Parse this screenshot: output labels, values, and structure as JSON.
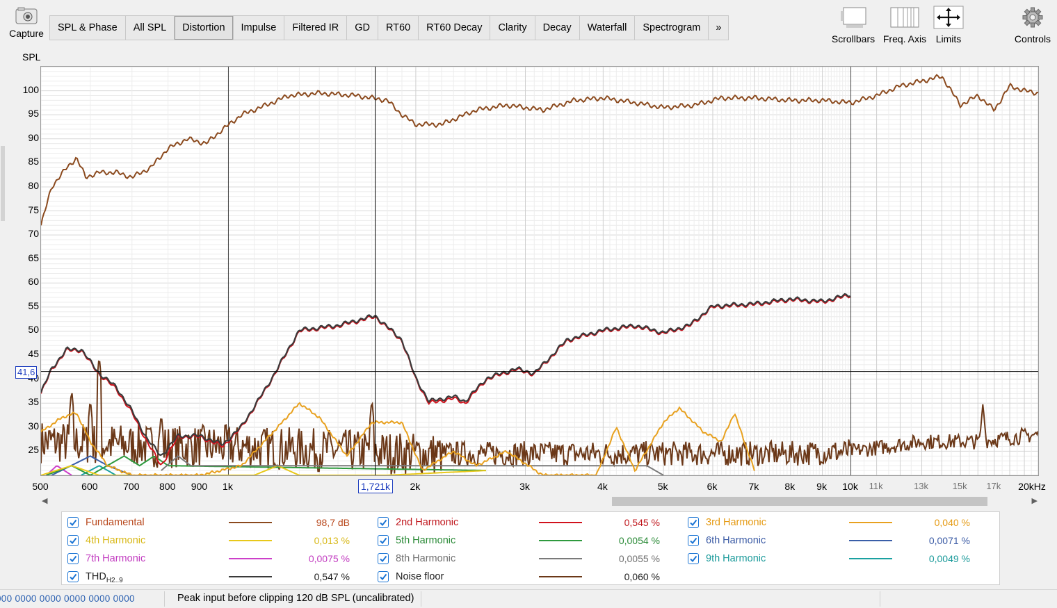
{
  "toolbar": {
    "capture_label": "Capture",
    "tabs": [
      {
        "label": "SPL & Phase",
        "active": false
      },
      {
        "label": "All SPL",
        "active": false
      },
      {
        "label": "Distortion",
        "active": true
      },
      {
        "label": "Impulse",
        "active": false
      },
      {
        "label": "Filtered IR",
        "active": false
      },
      {
        "label": "GD",
        "active": false
      },
      {
        "label": "RT60",
        "active": false
      },
      {
        "label": "RT60 Decay",
        "active": false
      },
      {
        "label": "Clarity",
        "active": false
      },
      {
        "label": "Decay",
        "active": false
      },
      {
        "label": "Waterfall",
        "active": false
      },
      {
        "label": "Spectrogram",
        "active": false
      }
    ],
    "more_label": "»",
    "right": {
      "scrollbars_label": "Scrollbars",
      "freq_axis_label": "Freq. Axis",
      "limits_label": "Limits",
      "controls_label": "Controls"
    }
  },
  "plot": {
    "y_unit": "SPL",
    "cursor_y_readout": "41,6",
    "cursor_x_readout": "1,721k",
    "y_ticks": [
      "100",
      "95",
      "90",
      "85",
      "80",
      "75",
      "70",
      "65",
      "60",
      "55",
      "50",
      "45",
      "40",
      "35",
      "30",
      "25"
    ],
    "x_ticks_major": [
      "500",
      "600",
      "700",
      "800",
      "900",
      "1k",
      "2k",
      "3k",
      "4k",
      "5k",
      "6k",
      "7k",
      "8k",
      "9k",
      "10k",
      "20kHz"
    ],
    "x_ticks_minor": [
      "11k",
      "13k",
      "15k",
      "17k"
    ]
  },
  "chart_data": {
    "type": "line",
    "title": "",
    "xlabel": "",
    "ylabel": "SPL",
    "x_scale": "log",
    "xlim_hz": [
      500,
      20000
    ],
    "ylim_db": [
      20,
      105
    ],
    "grid": true,
    "cursor": {
      "x_hz": 1721,
      "y_db": 41.6
    },
    "series": [
      {
        "name": "Fundamental",
        "color": "#8b4a1e",
        "points": [
          [
            500,
            72
          ],
          [
            520,
            80
          ],
          [
            550,
            84
          ],
          [
            570,
            86
          ],
          [
            590,
            82
          ],
          [
            620,
            83
          ],
          [
            660,
            83
          ],
          [
            700,
            82
          ],
          [
            750,
            84
          ],
          [
            800,
            88
          ],
          [
            860,
            90
          ],
          [
            920,
            89
          ],
          [
            980,
            92
          ],
          [
            1050,
            95
          ],
          [
            1150,
            97
          ],
          [
            1250,
            99
          ],
          [
            1400,
            99.5
          ],
          [
            1600,
            99
          ],
          [
            1800,
            98
          ],
          [
            1900,
            95
          ],
          [
            2000,
            93
          ],
          [
            2200,
            93
          ],
          [
            2500,
            96
          ],
          [
            2800,
            97
          ],
          [
            3200,
            96
          ],
          [
            3600,
            98
          ],
          [
            4000,
            98.5
          ],
          [
            4500,
            97.5
          ],
          [
            5000,
            96.5
          ],
          [
            5600,
            97
          ],
          [
            6200,
            98.5
          ],
          [
            7000,
            98.5
          ],
          [
            8000,
            98
          ],
          [
            9000,
            98
          ],
          [
            10000,
            97.5
          ],
          [
            11000,
            99
          ],
          [
            12000,
            101
          ],
          [
            13000,
            102
          ],
          [
            14000,
            103
          ],
          [
            15000,
            97
          ],
          [
            16000,
            99
          ],
          [
            17000,
            96
          ],
          [
            18000,
            101
          ],
          [
            19000,
            100
          ],
          [
            20000,
            99.5
          ]
        ]
      },
      {
        "name": "2nd Harmonic",
        "color": "#d1121c",
        "points": [
          [
            500,
            37
          ],
          [
            520,
            42
          ],
          [
            550,
            46
          ],
          [
            580,
            46
          ],
          [
            620,
            41
          ],
          [
            660,
            38
          ],
          [
            700,
            33
          ],
          [
            740,
            27
          ],
          [
            780,
            22
          ],
          [
            830,
            28
          ],
          [
            900,
            28
          ],
          [
            980,
            26
          ],
          [
            1050,
            30
          ],
          [
            1150,
            38
          ],
          [
            1300,
            50
          ],
          [
            1500,
            51
          ],
          [
            1720,
            53
          ],
          [
            1900,
            48
          ],
          [
            2000,
            40
          ],
          [
            2100,
            35
          ],
          [
            2300,
            36
          ],
          [
            2400,
            35
          ],
          [
            2600,
            40
          ],
          [
            2900,
            42
          ],
          [
            3100,
            41
          ],
          [
            3500,
            48
          ],
          [
            4000,
            50
          ],
          [
            4500,
            51
          ],
          [
            5000,
            49.5
          ],
          [
            5500,
            51
          ],
          [
            6000,
            55
          ],
          [
            7000,
            55.5
          ],
          [
            8000,
            56.5
          ],
          [
            9000,
            56
          ],
          [
            10000,
            57.5
          ]
        ]
      },
      {
        "name": "3rd Harmonic",
        "color": "#e8a11f",
        "points": [
          [
            500,
            29
          ],
          [
            540,
            32
          ],
          [
            570,
            33
          ],
          [
            600,
            27
          ],
          [
            640,
            22
          ],
          [
            700,
            20
          ],
          [
            900,
            20
          ],
          [
            1050,
            22
          ],
          [
            1200,
            30
          ],
          [
            1300,
            35
          ],
          [
            1400,
            32
          ],
          [
            1550,
            24
          ],
          [
            1700,
            31
          ],
          [
            1900,
            31
          ],
          [
            2050,
            21
          ],
          [
            2300,
            25
          ],
          [
            2500,
            22
          ],
          [
            2800,
            25
          ],
          [
            3200,
            20
          ],
          [
            3900,
            20
          ],
          [
            4200,
            30
          ],
          [
            4500,
            21
          ],
          [
            5000,
            31
          ],
          [
            5300,
            34
          ],
          [
            5800,
            29
          ],
          [
            6200,
            27
          ],
          [
            6500,
            33
          ],
          [
            7000,
            21
          ]
        ]
      },
      {
        "name": "4th Harmonic",
        "color": "#e8c81a",
        "points": [
          [
            500,
            20
          ],
          [
            560,
            22
          ],
          [
            620,
            20
          ],
          [
            1100,
            20
          ],
          [
            1200,
            22
          ],
          [
            1300,
            20
          ],
          [
            1800,
            20
          ],
          [
            2600,
            21
          ]
        ]
      },
      {
        "name": "5th Harmonic",
        "color": "#2e9a3e",
        "points": [
          [
            510,
            20
          ],
          [
            560,
            22
          ],
          [
            600,
            20
          ],
          [
            680,
            24
          ],
          [
            720,
            22
          ],
          [
            760,
            24
          ],
          [
            800,
            22
          ],
          [
            2600,
            21
          ]
        ]
      },
      {
        "name": "6th Harmonic",
        "color": "#3a5ea8",
        "points": [
          [
            520,
            20
          ],
          [
            600,
            24
          ],
          [
            640,
            22
          ],
          [
            700,
            20
          ]
        ]
      },
      {
        "name": "7th Harmonic",
        "color": "#cc3fc9",
        "points": [
          [
            510,
            20
          ],
          [
            530,
            22
          ],
          [
            560,
            20
          ]
        ]
      },
      {
        "name": "8th Harmonic",
        "color": "#7a7a7a",
        "points": [
          [
            780,
            21
          ],
          [
            830,
            24
          ],
          [
            870,
            22
          ],
          [
            4700,
            22
          ],
          [
            5000,
            20
          ]
        ]
      },
      {
        "name": "9th Harmonic",
        "color": "#1aa1a1",
        "points": [
          [
            580,
            20
          ],
          [
            620,
            22
          ],
          [
            660,
            20
          ]
        ]
      },
      {
        "name": "THD H2..9",
        "color": "#3a3a3a",
        "points": [
          [
            500,
            37.2
          ],
          [
            520,
            42.2
          ],
          [
            550,
            46.2
          ],
          [
            580,
            46.2
          ],
          [
            620,
            41.2
          ],
          [
            660,
            38.4
          ],
          [
            700,
            33.4
          ],
          [
            740,
            27.6
          ],
          [
            780,
            24
          ],
          [
            830,
            28.2
          ],
          [
            900,
            28.2
          ],
          [
            980,
            26.4
          ],
          [
            1050,
            30.2
          ],
          [
            1150,
            38.2
          ],
          [
            1300,
            50.2
          ],
          [
            1500,
            51.2
          ],
          [
            1720,
            53.2
          ],
          [
            1900,
            48.2
          ],
          [
            2000,
            40.2
          ],
          [
            2100,
            35.4
          ],
          [
            2300,
            36.4
          ],
          [
            2400,
            35.4
          ],
          [
            2600,
            40.2
          ],
          [
            2900,
            42.2
          ],
          [
            3100,
            41.2
          ],
          [
            3500,
            48.2
          ],
          [
            4000,
            50.2
          ],
          [
            4500,
            51.2
          ],
          [
            5000,
            49.7
          ],
          [
            5500,
            51.2
          ],
          [
            6000,
            55.2
          ],
          [
            7000,
            55.7
          ],
          [
            8000,
            56.7
          ],
          [
            9000,
            56.2
          ],
          [
            10000,
            57.7
          ]
        ]
      },
      {
        "name": "Noise floor",
        "color": "#6b3818",
        "baseline_points": [
          [
            500,
            27
          ],
          [
            800,
            26
          ],
          [
            1000,
            26
          ],
          [
            1600,
            25
          ],
          [
            2000,
            24.5
          ],
          [
            3000,
            24.5
          ],
          [
            5000,
            24.5
          ],
          [
            8000,
            24.5
          ],
          [
            10000,
            25
          ],
          [
            13000,
            27
          ],
          [
            16000,
            27
          ],
          [
            20000,
            28.5
          ]
        ],
        "spikes": [
          [
            560,
            38
          ],
          [
            620,
            45
          ],
          [
            600,
            36
          ],
          [
            780,
            33
          ],
          [
            1700,
            36
          ],
          [
            16300,
            35
          ],
          [
            18800,
            30
          ]
        ]
      }
    ]
  },
  "legend": [
    {
      "name": "Fundamental",
      "value": "98,7 dB",
      "color": "#8b4a1e",
      "text_color": "#b8471b",
      "checked": true
    },
    {
      "name": "2nd Harmonic",
      "value": "0,545 %",
      "color": "#d1121c",
      "text_color": "#c0181e",
      "checked": true
    },
    {
      "name": "3rd Harmonic",
      "value": "0,040 %",
      "color": "#e8a11f",
      "text_color": "#e59a13",
      "checked": true
    },
    {
      "name": "4th Harmonic",
      "value": "0,013 %",
      "color": "#e8c81a",
      "text_color": "#d8b817",
      "checked": true
    },
    {
      "name": "5th Harmonic",
      "value": "0,0054 %",
      "color": "#2e9a3e",
      "text_color": "#2a8a37",
      "checked": true
    },
    {
      "name": "6th Harmonic",
      "value": "0,0071 %",
      "color": "#3a5ea8",
      "text_color": "#3b5ba5",
      "checked": true
    },
    {
      "name": "7th Harmonic",
      "value": "0,0075 %",
      "color": "#cc3fc9",
      "text_color": "#c23cc0",
      "checked": true
    },
    {
      "name": "8th Harmonic",
      "value": "0,0055 %",
      "color": "#7a7a7a",
      "text_color": "#707070",
      "checked": true
    },
    {
      "name": "9th Harmonic",
      "value": "0,0049 %",
      "color": "#1aa1a1",
      "text_color": "#1a9a9a",
      "checked": true
    },
    {
      "name": "THD",
      "name_sub": "H2..9",
      "value": "0,547 %",
      "color": "#3a3a3a",
      "text_color": "#202020",
      "checked": true
    },
    {
      "name": "Noise floor",
      "value": "0,060 %",
      "color": "#6b3818",
      "text_color": "#202020",
      "checked": true
    }
  ],
  "status": {
    "hex_values": "000 0000  0000 0000  0000 0000",
    "message": "Peak input before clipping 120 dB SPL (uncalibrated)"
  },
  "icons": {
    "capture": "camera-icon",
    "scrollbars": "scrollbars-icon",
    "freq_axis": "freq-axis-icon",
    "limits": "limits-icon",
    "controls": "gear-icon"
  }
}
